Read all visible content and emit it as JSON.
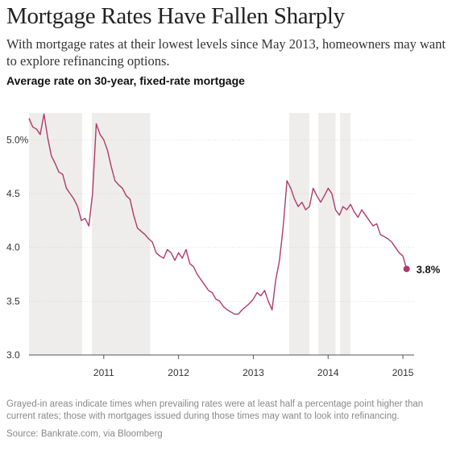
{
  "header": {
    "title": "Mortgage Rates Have Fallen Sharply",
    "subtitle": "With mortgage rates at their lowest levels since May 2013, homeowners may want to explore refinancing options."
  },
  "chart_title": "Average rate on 30-year, fixed-rate mortgage",
  "footnote": "Grayed-in areas indicate times when prevailing rates were at least half a percentage point higher than current rates; those with mortgages issued during those times may want to look into refinancing.",
  "source": "Source: Bankrate.com, via Bloomberg",
  "colors": {
    "line": "#b03a6b",
    "shade": "#eeedeb",
    "axis": "#555555",
    "grid": "#cccccc"
  },
  "chart_data": {
    "type": "line",
    "title": "Average rate on 30-year, fixed-rate mortgage",
    "xlabel": "",
    "ylabel": "",
    "xlim": [
      2010.0,
      2015.15
    ],
    "ylim": [
      3.0,
      5.25
    ],
    "yticks": [
      3.0,
      3.5,
      4.0,
      4.5,
      5.0
    ],
    "ytick_labels": [
      "3.0",
      "3.5",
      "4.0",
      "4.5",
      "5.0%"
    ],
    "xticks": [
      2011,
      2012,
      2013,
      2014,
      2015
    ],
    "xtick_labels": [
      "2011",
      "2012",
      "2013",
      "2014",
      "2015"
    ],
    "grid": false,
    "shaded_periods": [
      [
        2010.0,
        2010.71
      ],
      [
        2010.84,
        2011.62
      ],
      [
        2013.48,
        2013.75
      ],
      [
        2013.87,
        2014.1
      ],
      [
        2014.16,
        2014.3
      ]
    ],
    "end_label": "3.8%",
    "series": [
      {
        "x": [
          2010.0,
          2010.05,
          2010.1,
          2010.15,
          2010.2,
          2010.25,
          2010.3,
          2010.35,
          2010.4,
          2010.45,
          2010.5,
          2010.55,
          2010.6,
          2010.65,
          2010.7,
          2010.75,
          2010.8,
          2010.85,
          2010.9,
          2010.95,
          2011.0,
          2011.05,
          2011.1,
          2011.15,
          2011.2,
          2011.25,
          2011.3,
          2011.35,
          2011.4,
          2011.45,
          2011.5,
          2011.55,
          2011.6,
          2011.65,
          2011.7,
          2011.75,
          2011.8,
          2011.85,
          2011.9,
          2011.95,
          2012.0,
          2012.05,
          2012.1,
          2012.15,
          2012.2,
          2012.25,
          2012.3,
          2012.35,
          2012.4,
          2012.45,
          2012.5,
          2012.55,
          2012.6,
          2012.65,
          2012.7,
          2012.75,
          2012.8,
          2012.85,
          2012.9,
          2012.95,
          2013.0,
          2013.05,
          2013.1,
          2013.15,
          2013.2,
          2013.25,
          2013.3,
          2013.35,
          2013.4,
          2013.45,
          2013.5,
          2013.55,
          2013.6,
          2013.65,
          2013.7,
          2013.75,
          2013.8,
          2013.85,
          2013.9,
          2013.95,
          2014.0,
          2014.05,
          2014.1,
          2014.15,
          2014.2,
          2014.25,
          2014.3,
          2014.35,
          2014.4,
          2014.45,
          2014.5,
          2014.55,
          2014.6,
          2014.65,
          2014.7,
          2014.75,
          2014.8,
          2014.85,
          2014.9,
          2014.95,
          2015.0,
          2015.05
        ],
        "values": [
          5.2,
          5.12,
          5.1,
          5.05,
          5.24,
          5.02,
          4.85,
          4.78,
          4.7,
          4.68,
          4.55,
          4.5,
          4.45,
          4.38,
          4.25,
          4.27,
          4.2,
          4.5,
          5.15,
          5.05,
          5.0,
          4.9,
          4.75,
          4.62,
          4.58,
          4.55,
          4.48,
          4.45,
          4.3,
          4.18,
          4.15,
          4.12,
          4.08,
          4.05,
          3.95,
          3.92,
          3.9,
          3.98,
          3.95,
          3.88,
          3.95,
          3.9,
          3.98,
          3.85,
          3.82,
          3.75,
          3.7,
          3.65,
          3.6,
          3.58,
          3.52,
          3.5,
          3.45,
          3.42,
          3.4,
          3.38,
          3.38,
          3.42,
          3.45,
          3.48,
          3.52,
          3.58,
          3.55,
          3.6,
          3.5,
          3.42,
          3.7,
          3.88,
          4.2,
          4.62,
          4.55,
          4.45,
          4.38,
          4.42,
          4.35,
          4.38,
          4.55,
          4.48,
          4.42,
          4.48,
          4.55,
          4.5,
          4.35,
          4.3,
          4.38,
          4.35,
          4.4,
          4.33,
          4.28,
          4.35,
          4.3,
          4.25,
          4.2,
          4.22,
          4.12,
          4.1,
          4.08,
          4.05,
          4.0,
          3.95,
          3.92,
          3.8
        ]
      }
    ]
  }
}
